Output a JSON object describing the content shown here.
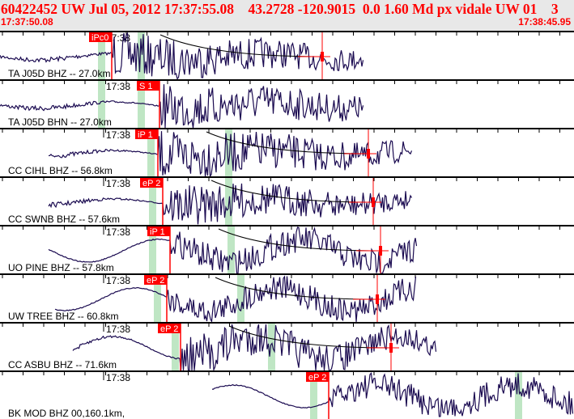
{
  "header": {
    "title": "60422452 UW Jul 05, 2012 17:37:55.08    43.2728 -120.9015  0.0 1.60 Md px vidale UW 01    3",
    "start_time": "17:37:50.08",
    "end_time": "17:38:45.95"
  },
  "colors": {
    "trace": "#1a0a50",
    "pick": "#ff0000",
    "window": "#bfe6c4",
    "header_text": "#ff0000"
  },
  "minute_label": "17:38",
  "panels": [
    {
      "label": "TA J05D BHZ -- 27.0km",
      "pick": "iPc0",
      "pick_t": 138,
      "green": [
        125,
        174
      ],
      "w": [
        0,
        450
      ],
      "amp": 26,
      "coda": true
    },
    {
      "label": "TA J05D BHN -- 27.0km",
      "pick": "S 1",
      "pick_t": 197,
      "green": [
        125,
        174
      ],
      "w": [
        0,
        450
      ],
      "amp": 26,
      "coda": false
    },
    {
      "label": "CC CIHL BHZ -- 56.8km",
      "pick": "iP 1",
      "pick_t": 195,
      "green": [
        186,
        282
      ],
      "w": [
        60,
        510
      ],
      "amp": 28,
      "coda": true
    },
    {
      "label": "CC SWNB BHZ -- 57.6km",
      "pick": "eP 2",
      "pick_t": 201,
      "green": [
        188,
        282
      ],
      "w": [
        60,
        510
      ],
      "amp": 24,
      "coda": true
    },
    {
      "label": "UO PINE BHZ -- 57.8km",
      "pick": "iP 1",
      "pick_t": 210,
      "green": [
        188,
        285
      ],
      "w": [
        60,
        515
      ],
      "amp": 28,
      "coda": true
    },
    {
      "label": "UW TREE BHZ -- 60.8km",
      "pick": "eP 2",
      "pick_t": 206,
      "green": [
        194,
        297
      ],
      "w": [
        68,
        515
      ],
      "amp": 26,
      "coda": true
    },
    {
      "label": "CC ASBU BHZ -- 71.6km",
      "pick": "eP 2",
      "pick_t": 223,
      "green": [
        216,
        335
      ],
      "w": [
        90,
        540
      ],
      "amp": 26,
      "coda": true
    },
    {
      "label": "BK MOD BHZ 00,160.1km,",
      "pick": "eP 2",
      "pick_t": 406,
      "green": [
        387,
        640
      ],
      "w": [
        262,
        709
      ],
      "amp": 26,
      "coda": false
    }
  ]
}
